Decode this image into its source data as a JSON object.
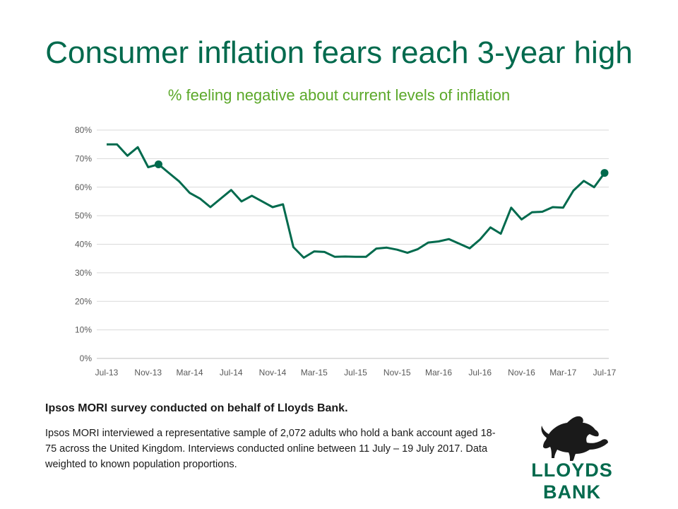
{
  "title": "Consumer inflation fears reach 3-year high",
  "subtitle": "% feeling negative about current levels of inflation",
  "survey": {
    "heading": "Ipsos MORI survey conducted on behalf of Lloyds Bank.",
    "body": "Ipsos MORI interviewed a representative sample of 2,072 adults who hold a bank account aged 18-75 across the United Kingdom.  Interviews conducted online between 11 July – 19 July 2017. Data weighted to known population proportions."
  },
  "logo": {
    "text": "LLOYDS BANK",
    "icon": "black-horse-icon"
  },
  "colors": {
    "line": "#006a4d",
    "title": "#006a4d",
    "subtitle": "#5ba829",
    "grid": "#d9d9d9",
    "tick_text": "#595959"
  },
  "chart_data": {
    "type": "line",
    "x": [
      "Jul-13",
      "Aug-13",
      "Sep-13",
      "Oct-13",
      "Nov-13",
      "Dec-13",
      "Jan-14",
      "Feb-14",
      "Mar-14",
      "Apr-14",
      "May-14",
      "Jun-14",
      "Jul-14",
      "Aug-14",
      "Sep-14",
      "Oct-14",
      "Nov-14",
      "Dec-14",
      "Jan-15",
      "Feb-15",
      "Mar-15",
      "Apr-15",
      "May-15",
      "Jun-15",
      "Jul-15",
      "Aug-15",
      "Sep-15",
      "Oct-15",
      "Nov-15",
      "Dec-15",
      "Jan-16",
      "Feb-16",
      "Mar-16",
      "Apr-16",
      "May-16",
      "Jun-16",
      "Jul-16",
      "Aug-16",
      "Sep-16",
      "Oct-16",
      "Nov-16",
      "Dec-16",
      "Jan-17",
      "Feb-17",
      "Mar-17",
      "Apr-17",
      "May-17",
      "Jun-17",
      "Jul-17"
    ],
    "x_tick_labels": [
      "Jul-13",
      "Nov-13",
      "Mar-14",
      "Jul-14",
      "Nov-14",
      "Mar-15",
      "Jul-15",
      "Nov-15",
      "Mar-16",
      "Jul-16",
      "Nov-16",
      "Mar-17",
      "Jul-17"
    ],
    "series": [
      {
        "values": [
          75,
          75,
          71,
          74,
          67,
          68,
          65,
          62,
          58,
          56,
          53,
          56,
          59,
          55,
          57,
          55,
          53,
          54,
          39,
          35.3,
          37.5,
          37.3,
          35.6,
          35.7,
          35.6,
          35.6,
          38.5,
          38.8,
          38.1,
          37,
          38.3,
          40.6,
          41,
          41.8,
          40.2,
          38.6,
          41.7,
          45.9,
          43.7,
          52.8,
          48.7,
          51.2,
          51.4,
          53,
          52.8,
          58.8,
          62.2,
          60,
          65
        ]
      }
    ],
    "highlighted_points": [
      {
        "x": "Dec-13",
        "y": 68
      },
      {
        "x": "Jul-17",
        "y": 65
      }
    ],
    "yticks": [
      "0%",
      "10%",
      "20%",
      "30%",
      "40%",
      "50%",
      "60%",
      "70%",
      "80%"
    ],
    "ylim": [
      0,
      80
    ],
    "grid": true,
    "xlabel": "",
    "ylabel": ""
  }
}
